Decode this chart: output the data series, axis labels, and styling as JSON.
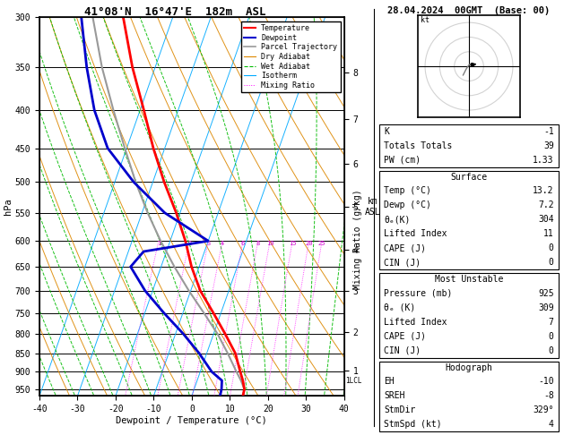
{
  "title_skew": "41°08'N  16°47'E  182m  ASL",
  "title_right": "28.04.2024  00GMT  (Base: 00)",
  "xlabel": "Dewpoint / Temperature (°C)",
  "ylabel_left": "hPa",
  "xlim": [
    -40,
    40
  ],
  "ylim_p": [
    300,
    970
  ],
  "pressure_levels": [
    300,
    350,
    400,
    450,
    500,
    550,
    600,
    650,
    700,
    750,
    800,
    850,
    900,
    950
  ],
  "temp_profile_p": [
    975,
    950,
    925,
    900,
    850,
    800,
    750,
    700,
    650,
    600,
    550,
    500,
    450,
    400,
    350,
    300
  ],
  "temp_profile_t": [
    13.5,
    13.2,
    12.0,
    10.5,
    7.5,
    3.0,
    -2.0,
    -7.5,
    -12.0,
    -16.0,
    -21.0,
    -27.0,
    -33.0,
    -39.0,
    -46.0,
    -53.0
  ],
  "dewp_profile_p": [
    975,
    950,
    925,
    900,
    850,
    800,
    750,
    700,
    650,
    620,
    600,
    550,
    500,
    450,
    400,
    350,
    300
  ],
  "dewp_profile_t": [
    7.5,
    7.2,
    6.5,
    3.0,
    -2.0,
    -8.0,
    -15.0,
    -22.0,
    -28.0,
    -26.0,
    -10.0,
    -24.0,
    -35.0,
    -45.0,
    -52.0,
    -58.0,
    -64.0
  ],
  "parcel_profile_p": [
    975,
    950,
    925,
    900,
    850,
    800,
    750,
    700,
    650,
    600,
    550,
    500,
    450,
    400,
    350,
    300
  ],
  "parcel_profile_t": [
    13.5,
    13.2,
    11.5,
    9.5,
    5.5,
    1.0,
    -4.5,
    -10.5,
    -16.5,
    -22.5,
    -28.5,
    -34.5,
    -40.5,
    -47.0,
    -54.0,
    -61.0
  ],
  "lcl_pressure": 925,
  "mixing_ratio_lines": [
    1,
    2,
    3,
    4,
    6,
    8,
    10,
    15,
    20,
    25
  ],
  "mixing_ratio_label_p": 600,
  "km_asl_ticks": [
    1,
    2,
    3,
    4,
    5,
    6,
    7,
    8
  ],
  "km_asl_pressures": [
    896,
    795,
    700,
    616,
    540,
    472,
    411,
    356
  ],
  "skew_factor": 35,
  "colors": {
    "temperature": "#ff0000",
    "dewpoint": "#0000cc",
    "parcel": "#999999",
    "dry_adiabat": "#dd8800",
    "wet_adiabat": "#00bb00",
    "isotherm": "#00aaff",
    "mixing_ratio": "#ff00ff",
    "background": "#ffffff",
    "grid": "#000000"
  },
  "legend_items": [
    {
      "label": "Temperature",
      "color": "#ff0000",
      "lw": 1.5,
      "ls": "-"
    },
    {
      "label": "Dewpoint",
      "color": "#0000cc",
      "lw": 1.5,
      "ls": "-"
    },
    {
      "label": "Parcel Trajectory",
      "color": "#999999",
      "lw": 1.2,
      "ls": "-"
    },
    {
      "label": "Dry Adiabat",
      "color": "#dd8800",
      "lw": 0.8,
      "ls": "-"
    },
    {
      "label": "Wet Adiabat",
      "color": "#00bb00",
      "lw": 0.8,
      "ls": "--"
    },
    {
      "label": "Isotherm",
      "color": "#00aaff",
      "lw": 0.8,
      "ls": "-"
    },
    {
      "label": "Mixing Ratio",
      "color": "#ff00ff",
      "lw": 0.7,
      "ls": ":"
    }
  ],
  "info_box": {
    "K": -1,
    "Totals_Totals": 39,
    "PW_cm": 1.33,
    "Surface_Temp": 13.2,
    "Surface_Dewp": 7.2,
    "Surface_ThetaE": 304,
    "Surface_LiftedIndex": 11,
    "Surface_CAPE": 0,
    "Surface_CIN": 0,
    "MU_Pressure": 925,
    "MU_ThetaE": 309,
    "MU_LiftedIndex": 7,
    "MU_CAPE": 0,
    "MU_CIN": 0,
    "EH": -10,
    "SREH": -8,
    "StmDir": 329,
    "StmSpd": 4
  }
}
